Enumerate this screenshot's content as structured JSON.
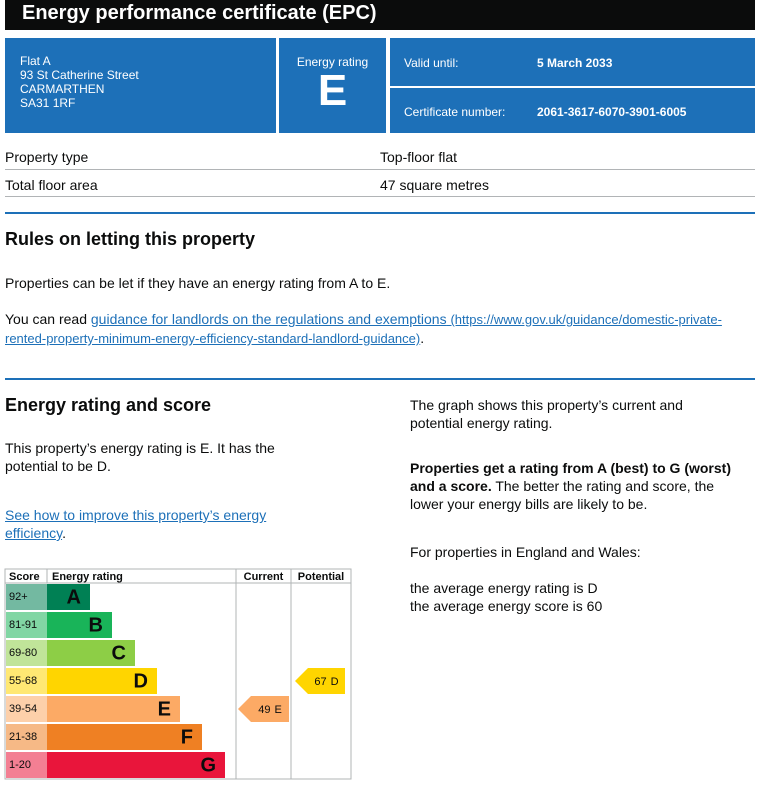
{
  "header": {
    "title": "Energy performance certificate (EPC)"
  },
  "summary": {
    "address": [
      "Flat A",
      "93 St Catherine Street",
      "CARMARTHEN",
      "SA31 1RF"
    ],
    "rating_label": "Energy rating",
    "rating": "E",
    "valid_until_label": "Valid until:",
    "valid_until": "5 March 2033",
    "certificate_label": "Certificate number:",
    "certificate_number": "2061-3617-6070-3901-6005"
  },
  "property": {
    "rows": [
      [
        "Property type",
        "Top-floor flat"
      ],
      [
        "Total floor area",
        "47 square metres"
      ]
    ]
  },
  "letting": {
    "heading": "Rules on letting this property",
    "paragraph": "Properties can be let if they have an energy rating from A to E.",
    "read_prefix": "You can read",
    "link_text": "guidance for landlords on the regulations and exemptions",
    "link_url": "(https://www.gov.uk/guidance/domestic-private-rented-property-minimum-energy-efficiency-standard-landlord-guidance)",
    "suffix": "."
  },
  "rating_section": {
    "heading": "Energy rating and score",
    "paragraph": "This property’s energy rating is E. It has the potential to be D.",
    "link_text": "See how to improve this property’s energy efficiency",
    "suffix": ".",
    "graph_note": "The graph shows this property’s current and potential energy rating.",
    "bold_text": "Properties get a rating from A (best) to G (worst) and a score.",
    "rest_text": "The better the rating and score, the lower your energy bills are likely to be.",
    "region": "For properties in England and Wales:",
    "average_rating": "the average energy rating is D",
    "average_score": "the average energy score is 60"
  },
  "graph": {
    "headers": [
      "Score",
      "Energy rating",
      "Current",
      "Potential"
    ],
    "bands": [
      {
        "score": "92+",
        "letter": "A",
        "color": "#008054"
      },
      {
        "score": "81-91",
        "letter": "B",
        "color": "#19b459"
      },
      {
        "score": "69-80",
        "letter": "C",
        "color": "#8dce46"
      },
      {
        "score": "55-68",
        "letter": "D",
        "color": "#ffd500"
      },
      {
        "score": "39-54",
        "letter": "E",
        "color": "#fcaa65"
      },
      {
        "score": "21-38",
        "letter": "F",
        "color": "#ef8023"
      },
      {
        "score": "1-20",
        "letter": "G",
        "color": "#e9153b"
      }
    ],
    "current": {
      "score": 49,
      "letter": "E"
    },
    "potential": {
      "score": 67,
      "letter": "D"
    }
  }
}
